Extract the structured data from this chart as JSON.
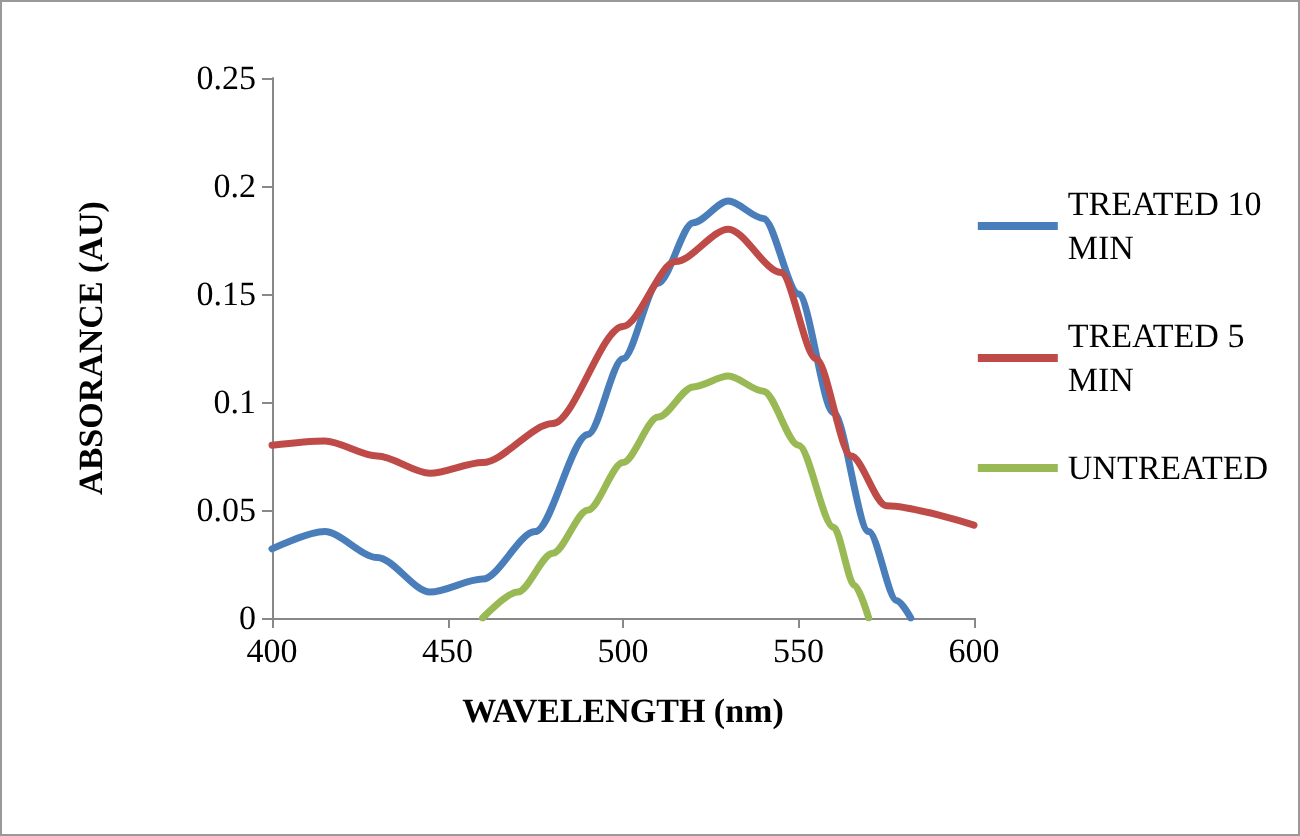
{
  "chart_data": {
    "type": "line",
    "xlabel": "WAVELENGTH (nm)",
    "ylabel": "ABSORANCE (AU)",
    "xlim": [
      400,
      600
    ],
    "xticks": [
      400,
      450,
      500,
      550,
      600
    ],
    "ylim": [
      0,
      0.25
    ],
    "yticks": [
      0,
      0.05,
      0.1,
      0.15,
      0.2,
      0.25
    ],
    "grid": false,
    "legend": "right",
    "marker": "none",
    "line_style": "solid",
    "series": [
      {
        "name": "TREATED 10 MIN",
        "color": "#4a7ebb",
        "x": [
          400,
          415,
          430,
          445,
          460,
          475,
          490,
          500,
          510,
          520,
          530,
          540,
          550,
          560,
          570,
          578,
          582
        ],
        "values": [
          0.032,
          0.04,
          0.028,
          0.012,
          0.018,
          0.04,
          0.085,
          0.12,
          0.155,
          0.183,
          0.193,
          0.185,
          0.15,
          0.095,
          0.04,
          0.008,
          0
        ]
      },
      {
        "name": "TREATED 5 MIN",
        "color": "#be4b48",
        "x": [
          400,
          415,
          430,
          445,
          460,
          480,
          500,
          515,
          530,
          545,
          555,
          565,
          575,
          600
        ],
        "values": [
          0.08,
          0.082,
          0.075,
          0.067,
          0.072,
          0.09,
          0.135,
          0.165,
          0.18,
          0.16,
          0.12,
          0.075,
          0.052,
          0.043
        ]
      },
      {
        "name": "UNTREATED",
        "color": "#98b954",
        "x": [
          460,
          470,
          480,
          490,
          500,
          510,
          520,
          530,
          540,
          550,
          560,
          566,
          570
        ],
        "values": [
          0,
          0.012,
          0.03,
          0.05,
          0.072,
          0.093,
          0.107,
          0.112,
          0.105,
          0.08,
          0.042,
          0.015,
          0
        ]
      }
    ]
  }
}
